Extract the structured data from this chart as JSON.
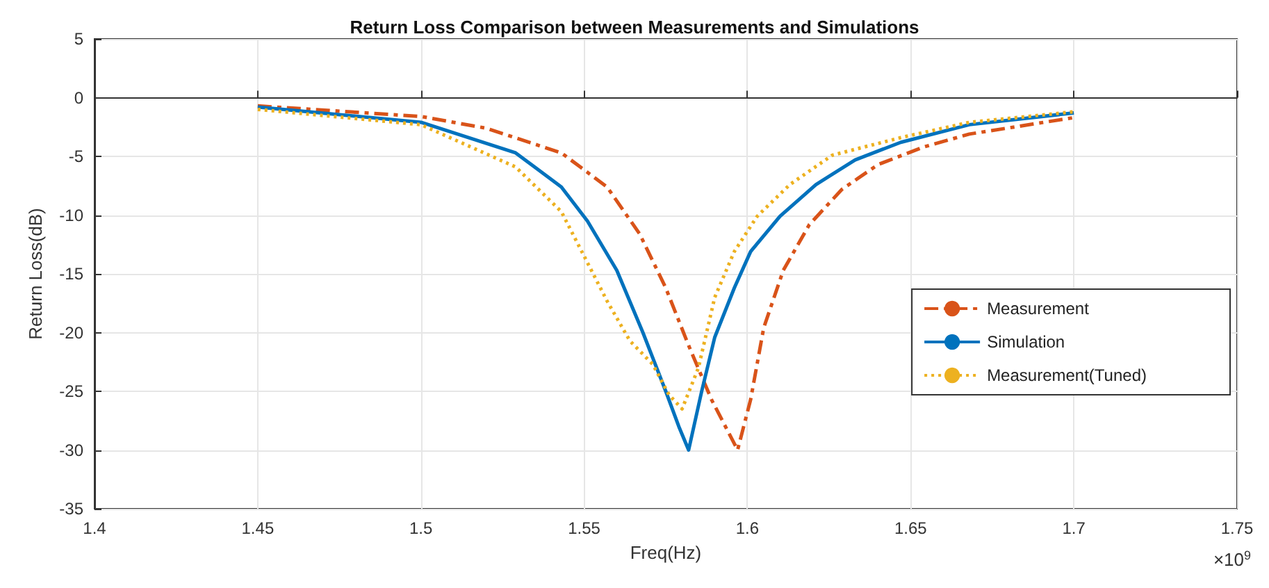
{
  "chart_data": {
    "type": "line",
    "title": "Return Loss Comparison between Measurements and Simulations",
    "xlabel": "Freq(Hz)",
    "ylabel": "Return Loss(dB)",
    "annotations": [
      "×10$^{9}$"
    ],
    "xlim": [
      1.4,
      1.75
    ],
    "xticks": [
      1.4,
      1.45,
      1.5,
      1.55,
      1.6,
      1.65,
      1.7,
      1.75
    ],
    "ylim": [
      -35,
      5
    ],
    "yticks": [
      -35,
      -30,
      -25,
      -20,
      -15,
      -10,
      -5,
      0,
      5
    ],
    "grid": true,
    "legend": "right",
    "marker": "none",
    "series": [
      {
        "name": "Measurement",
        "color": "#d95319",
        "line_style": "dashed",
        "x": [
          1.45,
          1.5,
          1.52,
          1.543,
          1.557,
          1.567,
          1.575,
          1.582,
          1.589,
          1.597,
          1.601,
          1.605,
          1.611,
          1.619,
          1.629,
          1.64,
          1.654,
          1.668,
          1.7
        ],
        "values": [
          -0.7,
          -1.6,
          -2.6,
          -4.7,
          -7.6,
          -11.6,
          -16.2,
          -21.1,
          -25.7,
          -30,
          -25.7,
          -19.6,
          -14.7,
          -10.8,
          -7.8,
          -5.7,
          -4.2,
          -3.1,
          -1.7
        ]
      },
      {
        "name": "Simulation",
        "color": "#0072bd",
        "line_style": "solid",
        "x": [
          1.45,
          1.5,
          1.529,
          1.543,
          1.551,
          1.56,
          1.568,
          1.575,
          1.579,
          1.582,
          1.586,
          1.59,
          1.596,
          1.601,
          1.61,
          1.621,
          1.633,
          1.647,
          1.668,
          1.7
        ],
        "values": [
          -0.8,
          -2.1,
          -4.7,
          -7.6,
          -10.5,
          -14.7,
          -20,
          -25,
          -28,
          -30,
          -25,
          -20.4,
          -16.2,
          -13.1,
          -10.1,
          -7.4,
          -5.3,
          -3.8,
          -2.3,
          -1.3
        ]
      },
      {
        "name": "Measurement(Tuned)",
        "color": "#edb120",
        "line_style": "dotted",
        "x": [
          1.45,
          1.5,
          1.529,
          1.543,
          1.55,
          1.557,
          1.564,
          1.571,
          1.576,
          1.58,
          1.585,
          1.59,
          1.596,
          1.603,
          1.613,
          1.626,
          1.647,
          1.668,
          1.7
        ],
        "values": [
          -1,
          -2.3,
          -5.9,
          -9.7,
          -13.5,
          -17.3,
          -20.7,
          -22.7,
          -25.3,
          -26.5,
          -23,
          -17,
          -13.1,
          -10.1,
          -7.4,
          -4.9,
          -3.4,
          -2.1,
          -1.2
        ]
      }
    ]
  }
}
